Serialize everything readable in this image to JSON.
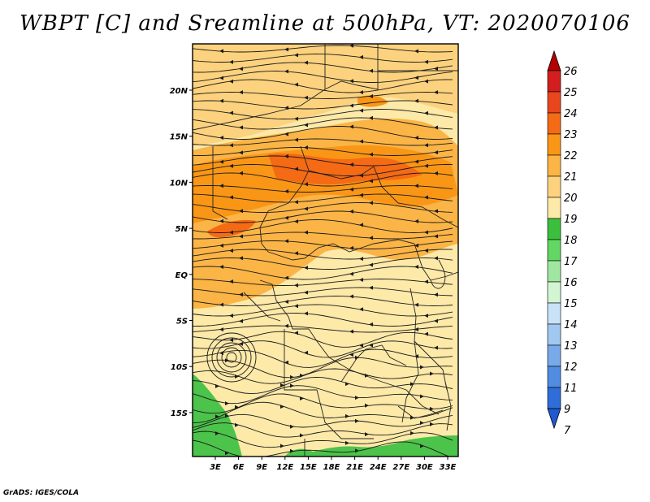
{
  "title": "WBPT [C] and Sreamline at 500hPa, VT: 2020070106",
  "footer": "GrADS: IGES/COLA",
  "map": {
    "lon_labels": [
      "3E",
      "6E",
      "9E",
      "12E",
      "15E",
      "18E",
      "21E",
      "24E",
      "27E",
      "30E",
      "33E"
    ],
    "lat_labels": [
      "20N",
      "15N",
      "10N",
      "5N",
      "EQ",
      "5S",
      "10S",
      "15S"
    ]
  },
  "colorbar": {
    "labels": [
      "26",
      "25",
      "24",
      "23",
      "22",
      "21",
      "20",
      "19",
      "18",
      "17",
      "16",
      "15",
      "14",
      "13",
      "12",
      "11",
      "9",
      "7"
    ],
    "colors": [
      "#b40000",
      "#d21e1e",
      "#e8461e",
      "#f56a14",
      "#fa9616",
      "#fbb446",
      "#fcd27e",
      "#fde9a8",
      "#3cbf3c",
      "#63d663",
      "#a0e6a0",
      "#d2f5d2",
      "#c8e2f8",
      "#a0c8f0",
      "#78aaea",
      "#508ce2",
      "#2f6ed8",
      "#1e5ad0"
    ]
  },
  "legend_colors": {
    "green": "#4cc34a",
    "pale": "#fde9a8",
    "light_orange": "#fcd27e",
    "orange": "#fbb446",
    "dark_orange": "#fa9616",
    "red_orange": "#f56a14"
  }
}
